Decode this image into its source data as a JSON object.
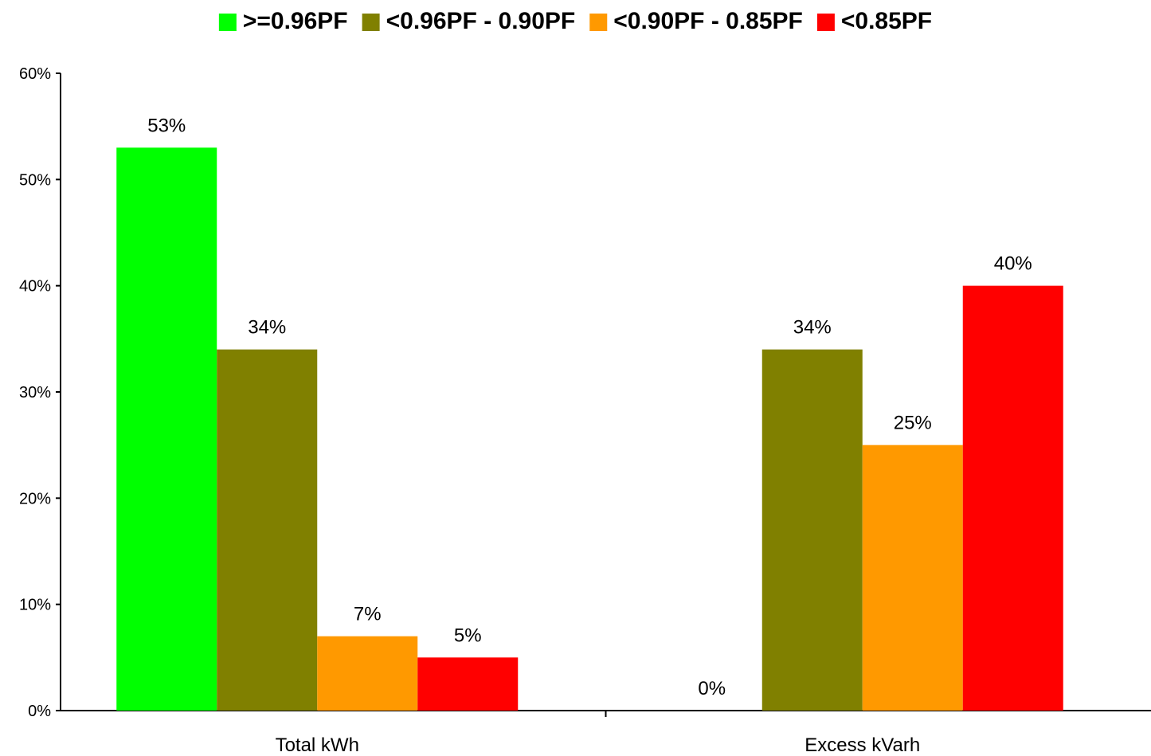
{
  "chart_data": {
    "type": "bar",
    "categories": [
      "Total kWh",
      "Excess kVarh"
    ],
    "series": [
      {
        "name": ">=0.96PF",
        "color": "#00ff00",
        "values": [
          53,
          0
        ],
        "labels": [
          "53%",
          "0%"
        ]
      },
      {
        "name": "<0.96PF - 0.90PF",
        "color": "#808000",
        "values": [
          34,
          34
        ],
        "labels": [
          "34%",
          "34%"
        ]
      },
      {
        "name": "<0.90PF - 0.85PF",
        "color": "#ff9900",
        "values": [
          7,
          25
        ],
        "labels": [
          "7%",
          "25%"
        ]
      },
      {
        "name": "<0.85PF",
        "color": "#ff0000",
        "values": [
          5,
          40
        ],
        "labels": [
          "5%",
          "40%"
        ]
      }
    ],
    "yticks": [
      "0%",
      "10%",
      "20%",
      "30%",
      "40%",
      "50%",
      "60%"
    ],
    "ylim": [
      0,
      60
    ],
    "legend_position": "top",
    "grid": false
  }
}
